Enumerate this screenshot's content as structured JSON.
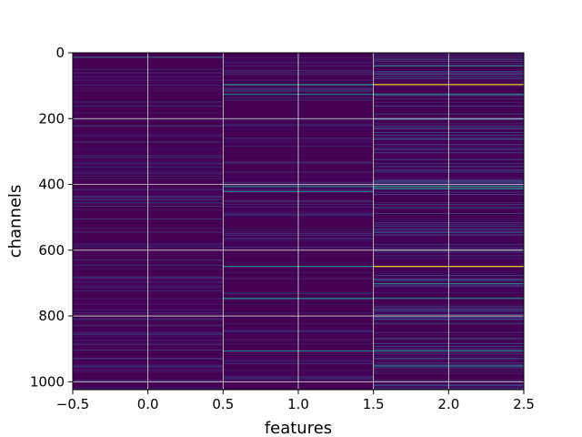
{
  "chart_data": {
    "type": "heatmap",
    "title": "",
    "xlabel": "features",
    "ylabel": "channels",
    "x_categories": [
      0,
      1,
      2
    ],
    "xlim": [
      -0.5,
      2.5
    ],
    "ylim": [
      1024,
      0
    ],
    "y_inverted": true,
    "rows": 1024,
    "grid": true,
    "colormap": "viridis",
    "background_color": "#440154",
    "x_ticks": [
      -0.5,
      0.0,
      0.5,
      1.0,
      1.5,
      2.0,
      2.5
    ],
    "x_tick_labels": [
      "−0.5",
      "0.0",
      "0.5",
      "1.0",
      "1.5",
      "2.0",
      "2.5"
    ],
    "y_ticks": [
      0,
      200,
      400,
      600,
      800,
      1000
    ],
    "y_tick_labels": [
      "0",
      "200",
      "400",
      "600",
      "800",
      "1000"
    ],
    "colors": {
      "grid": "#d9d9d9",
      "low": "#440154",
      "mid_low": "#3b528b",
      "mid": "#21918c",
      "high": "#fde725"
    },
    "highlights": [
      {
        "feature": 0,
        "channel": 12,
        "value": 0.35
      },
      {
        "feature": 1,
        "channel": 95,
        "value": 0.55
      },
      {
        "feature": 1,
        "channel": 125,
        "value": 0.45
      },
      {
        "feature": 1,
        "channel": 405,
        "value": 0.5
      },
      {
        "feature": 1,
        "channel": 420,
        "value": 0.45
      },
      {
        "feature": 1,
        "channel": 648,
        "value": 0.5
      },
      {
        "feature": 1,
        "channel": 745,
        "value": 0.5
      },
      {
        "feature": 1,
        "channel": 905,
        "value": 0.4
      },
      {
        "feature": 2,
        "channel": 38,
        "value": 0.45
      },
      {
        "feature": 2,
        "channel": 95,
        "value": 1.0
      },
      {
        "feature": 2,
        "channel": 125,
        "value": 0.45
      },
      {
        "feature": 2,
        "channel": 405,
        "value": 0.55
      },
      {
        "feature": 2,
        "channel": 412,
        "value": 0.5
      },
      {
        "feature": 2,
        "channel": 648,
        "value": 1.0
      },
      {
        "feature": 2,
        "channel": 700,
        "value": 0.4
      },
      {
        "feature": 2,
        "channel": 745,
        "value": 0.45
      },
      {
        "feature": 2,
        "channel": 905,
        "value": 0.45
      },
      {
        "feature": 2,
        "channel": 950,
        "value": 0.4
      }
    ]
  }
}
